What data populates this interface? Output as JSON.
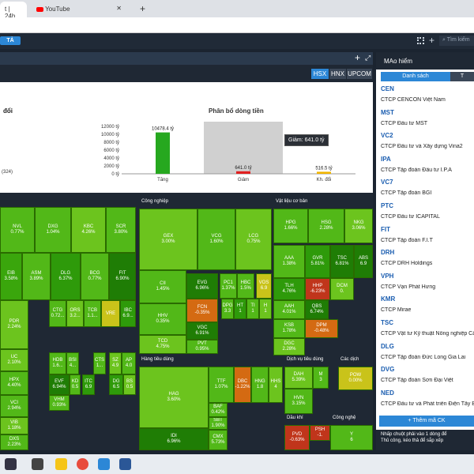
{
  "browser": {
    "tabs": [
      {
        "label": "t | 24h",
        "active": true
      },
      {
        "label": "YouTube",
        "active": false
      }
    ],
    "new_tab": "+"
  },
  "appbar": {
    "ta_button": "TẢ",
    "search_placeholder": "Tìm kiếm"
  },
  "exchanges": [
    "HSX",
    "HNX",
    "UPCOM"
  ],
  "selected_exchange": "HSX",
  "chart_section": {
    "left_label": "đổi",
    "left_count": "(324)",
    "title": "Phân bổ dòng tiền",
    "tooltip": "Giảm: 641.0 tỷ"
  },
  "chart_data": {
    "type": "bar",
    "title": "Phân bổ dòng tiền",
    "categories": [
      "Tăng",
      "Giảm",
      "Kh. đổi"
    ],
    "values": [
      10478.4,
      641.0,
      516.5
    ],
    "value_labels": [
      "10478.4 tỷ",
      "641.0 tỷ",
      "516.5 tỷ"
    ],
    "ytick_labels": [
      "0 tỷ",
      "2000 tỷ",
      "4000 tỷ",
      "6000 tỷ",
      "8000 tỷ",
      "10000 tỷ",
      "12000 tỷ"
    ],
    "ylim": [
      0,
      12000
    ],
    "colors": [
      "#26a81f",
      "#e02020",
      "#f0b400"
    ]
  },
  "sectors": {
    "cong_nghiep": "Công nghiệp",
    "vat_lieu": "Vật liệu cơ bản",
    "hang_tieu_dung": "Hàng tiêu dùng",
    "dich_vu": "Dịch vụ tiêu dùng",
    "cac_dich": "Các dịch",
    "dau_khi": "Dầu khí",
    "cong_nghe": "Công nghệ"
  },
  "tiles": [
    {
      "sym": "NVL",
      "pct": "0.77%"
    },
    {
      "sym": "DXG",
      "pct": "1.04%"
    },
    {
      "sym": "KBC",
      "pct": "4.26%"
    },
    {
      "sym": "SCR",
      "pct": "3.80%"
    },
    {
      "sym": "EIB",
      "pct": "3.58%"
    },
    {
      "sym": "ASM",
      "pct": "3.89%"
    },
    {
      "sym": "DLG",
      "pct": "6.37%"
    },
    {
      "sym": "BCG",
      "pct": "0.77%"
    },
    {
      "sym": "FIT",
      "pct": "6.90%"
    },
    {
      "sym": "PDR",
      "pct": "2.24%"
    },
    {
      "sym": "CTG",
      "pct": "0.72..."
    },
    {
      "sym": "ORS",
      "pct": "3.2..."
    },
    {
      "sym": "TCB",
      "pct": "1.1..."
    },
    {
      "sym": "VRE",
      "pct": ""
    },
    {
      "sym": "IBC",
      "pct": "6.9..."
    },
    {
      "sym": "UC",
      "pct": "2.10%"
    },
    {
      "sym": "HDB",
      "pct": "1.6..."
    },
    {
      "sym": "BSI",
      "pct": "4..."
    },
    {
      "sym": "CTS",
      "pct": "1..."
    },
    {
      "sym": "SZ",
      "pct": "4.9"
    },
    {
      "sym": "AP",
      "pct": "4.0"
    },
    {
      "sym": "HPX",
      "pct": "4.40%"
    },
    {
      "sym": "EVF",
      "pct": "6.94%"
    },
    {
      "sym": "KD",
      "pct": "0.5"
    },
    {
      "sym": "ITC",
      "pct": "6.9"
    },
    {
      "sym": "DG",
      "pct": "6.5"
    },
    {
      "sym": "BS",
      "pct": "0.5"
    },
    {
      "sym": "VCI",
      "pct": "2.94%"
    },
    {
      "sym": "VHM",
      "pct": "0.93%"
    },
    {
      "sym": "VIB",
      "pct": "1.18%"
    },
    {
      "sym": "DXS",
      "pct": "2.23%"
    },
    {
      "sym": "GEX",
      "pct": "3.00%"
    },
    {
      "sym": "VCG",
      "pct": "1.60%"
    },
    {
      "sym": "LCG",
      "pct": "0.75%"
    },
    {
      "sym": "CII",
      "pct": "1.45%"
    },
    {
      "sym": "EVG",
      "pct": "6.96%"
    },
    {
      "sym": "PC1",
      "pct": "1.37%"
    },
    {
      "sym": "HBC",
      "pct": "1.5%"
    },
    {
      "sym": "VOS",
      "pct": "6.9"
    },
    {
      "sym": "HHV",
      "pct": "0.35%"
    },
    {
      "sym": "FCN",
      "pct": "-0.35%"
    },
    {
      "sym": "DPG",
      "pct": "3.3"
    },
    {
      "sym": "HT",
      "pct": "1"
    },
    {
      "sym": "TI",
      "pct": "1"
    },
    {
      "sym": "H",
      "pct": "1"
    },
    {
      "sym": "TCD",
      "pct": "4.75%"
    },
    {
      "sym": "VGC",
      "pct": "6.91%"
    },
    {
      "sym": "PVT",
      "pct": "0.95%"
    },
    {
      "sym": "HPG",
      "pct": "1.66%"
    },
    {
      "sym": "HSG",
      "pct": "2.28%"
    },
    {
      "sym": "NKG",
      "pct": "3.06%"
    },
    {
      "sym": "AAA",
      "pct": "1.38%"
    },
    {
      "sym": "GVR",
      "pct": "5.81%"
    },
    {
      "sym": "TSC",
      "pct": "6.81%"
    },
    {
      "sym": "ABS",
      "pct": "6.9"
    },
    {
      "sym": "TLH",
      "pct": "4.76%"
    },
    {
      "sym": "HHP",
      "pct": "-6.23%"
    },
    {
      "sym": "DCM",
      "pct": "0."
    },
    {
      "sym": "AAH",
      "pct": "4.01%"
    },
    {
      "sym": "QBS",
      "pct": "6.74%"
    },
    {
      "sym": "KSB",
      "pct": "1.78%"
    },
    {
      "sym": "DPM",
      "pct": "-0.48%"
    },
    {
      "sym": "DGC",
      "pct": "2.28%"
    },
    {
      "sym": "HAG",
      "pct": "3.60%"
    },
    {
      "sym": "TTF",
      "pct": "1.07%"
    },
    {
      "sym": "DBC",
      "pct": "-1.22%"
    },
    {
      "sym": "HNG",
      "pct": "1.8"
    },
    {
      "sym": "HHS",
      "pct": "4"
    },
    {
      "sym": "BAF",
      "pct": "0.42%"
    },
    {
      "sym": "SBT",
      "pct": "1.90%"
    },
    {
      "sym": "IDI",
      "pct": "6.96%"
    },
    {
      "sym": "CMX",
      "pct": "5.73%"
    },
    {
      "sym": "DAH",
      "pct": "5.39%"
    },
    {
      "sym": "M",
      "pct": "3"
    },
    {
      "sym": "HVN",
      "pct": "3.15%"
    },
    {
      "sym": "POW",
      "pct": "0.00%"
    },
    {
      "sym": "PVD",
      "pct": "-0.63%"
    },
    {
      "sym": "PSH",
      "pct": "-1."
    },
    {
      "sym": "Y",
      "pct": "6"
    }
  ],
  "right_panel": {
    "title": "MAo hiểm",
    "tab_active": "Danh sách",
    "tab_other": "T",
    "items": [
      {
        "code": "CEN",
        "name": "CTCP CENCON Việt Nam"
      },
      {
        "code": "MST",
        "name": "CTCP Đầu tư MST"
      },
      {
        "code": "VC2",
        "name": "CTCP Đầu tư và Xây dựng Vina2"
      },
      {
        "code": "IPA",
        "name": "CTCP Tập đoàn Đầu tư I.P.A"
      },
      {
        "code": "VC7",
        "name": "CTCP Tập đoàn BGI"
      },
      {
        "code": "PTC",
        "name": "CTCP Đầu tư ICAPITAL"
      },
      {
        "code": "FIT",
        "name": "CTCP Tập đoàn F.I.T"
      },
      {
        "code": "DRH",
        "name": "CTCP DRH Holdings"
      },
      {
        "code": "VPH",
        "name": "CTCP Vạn Phát Hưng"
      },
      {
        "code": "KMR",
        "name": "CTCP Mirae"
      },
      {
        "code": "TSC",
        "name": "CTCP Vật tư Kỹ thuật Nông nghiệp Cần"
      },
      {
        "code": "DLG",
        "name": "CTCP Tập đoàn Đức Long Gia Lai"
      },
      {
        "code": "DVG",
        "name": "CTCP Tập đoàn Sơn Đại Việt"
      },
      {
        "code": "NED",
        "name": "CTCP Đầu tư và Phát triển Điện Tây Bắc"
      }
    ],
    "add_button": "+ Thêm mã CK",
    "note_line1": "Nhấp chuột phải vào 1 dòng để",
    "note_line2": "Thủ công, kéo thả để sắp xếp"
  }
}
